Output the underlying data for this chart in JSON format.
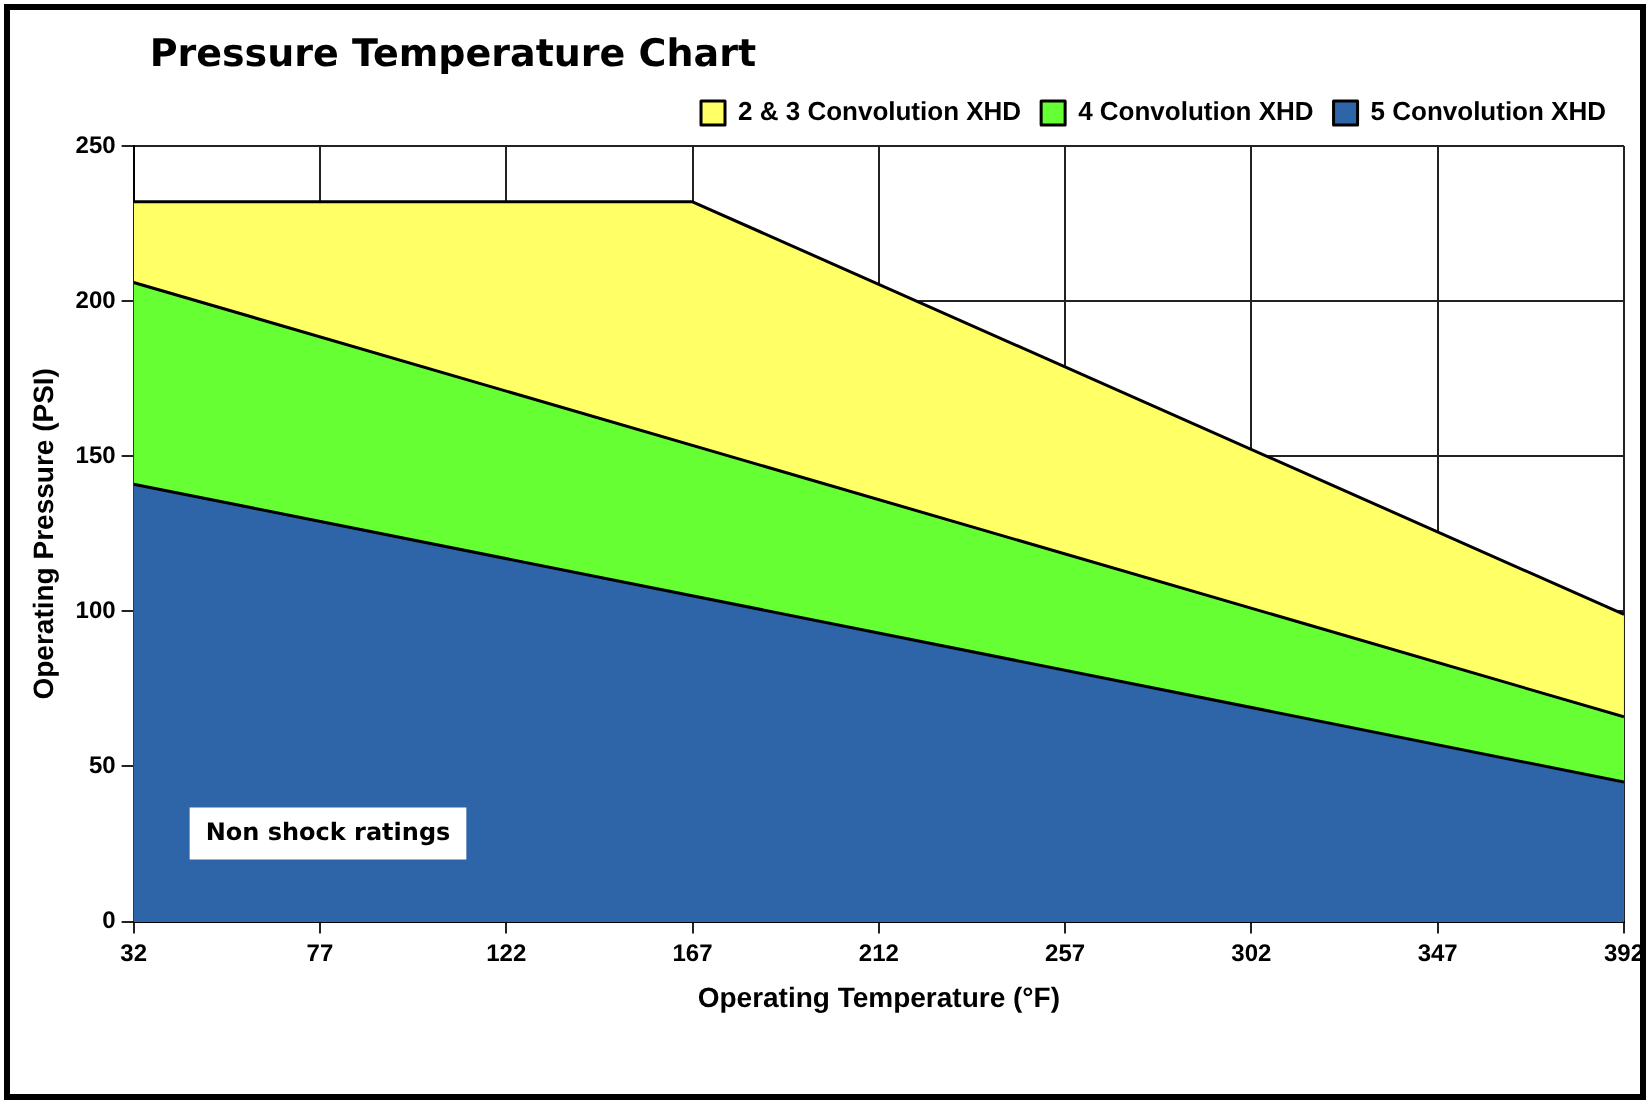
{
  "chart_data": {
    "type": "area",
    "title": "Pressure Temperature Chart",
    "xlabel": "Operating Temperature (°F)",
    "ylabel": "Operating Pressure (PSI)",
    "xlim": [
      32,
      392
    ],
    "xticks": [
      32,
      77,
      122,
      167,
      212,
      257,
      302,
      347,
      392
    ],
    "ylim": [
      0,
      250
    ],
    "yticks": [
      0,
      50,
      100,
      150,
      200,
      250
    ],
    "series": [
      {
        "name": "2 & 3 Convolution XHD",
        "color": "#ffff66",
        "x": [
          32,
          167,
          392
        ],
        "values": [
          232,
          232,
          99
        ]
      },
      {
        "name": "4 Convolution XHD",
        "color": "#66ff33",
        "x": [
          32,
          392
        ],
        "values": [
          206,
          66
        ]
      },
      {
        "name": "5 Convolution XHD",
        "color": "#2e65a8",
        "x": [
          32,
          392
        ],
        "values": [
          141,
          45
        ]
      }
    ],
    "annotations": [
      "Non shock ratings"
    ],
    "grid": true,
    "legend": "top right"
  }
}
